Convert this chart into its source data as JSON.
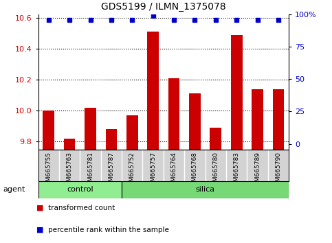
{
  "title": "GDS5199 / ILMN_1375078",
  "samples": [
    "GSM665755",
    "GSM665763",
    "GSM665781",
    "GSM665787",
    "GSM665752",
    "GSM665757",
    "GSM665764",
    "GSM665768",
    "GSM665780",
    "GSM665783",
    "GSM665789",
    "GSM665790"
  ],
  "transformed_counts": [
    10.0,
    9.82,
    10.02,
    9.88,
    9.97,
    10.51,
    10.21,
    10.11,
    9.89,
    10.49,
    10.14,
    10.14
  ],
  "percentile_ranks": [
    96,
    96,
    96,
    96,
    96,
    99,
    96,
    96,
    96,
    96,
    96,
    96
  ],
  "control_count": 4,
  "silica_count": 8,
  "ylim_left": [
    9.75,
    10.62
  ],
  "ylim_right": [
    -4.35,
    100
  ],
  "yticks_left": [
    9.8,
    10.0,
    10.2,
    10.4,
    10.6
  ],
  "yticks_right": [
    0,
    25,
    50,
    75,
    100
  ],
  "ytick_labels_right": [
    "0",
    "25",
    "50",
    "75",
    "100%"
  ],
  "bar_color": "#cc0000",
  "dot_color": "#0000cc",
  "control_color": "#90ee90",
  "silica_color": "#76d976",
  "bg_color": "#d3d3d3",
  "legend_red_label": "transformed count",
  "legend_blue_label": "percentile rank within the sample",
  "agent_label": "agent",
  "control_label": "control",
  "silica_label": "silica"
}
